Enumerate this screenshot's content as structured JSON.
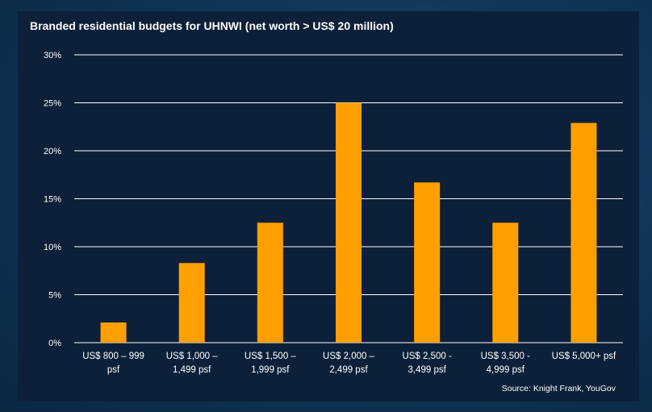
{
  "chart_data": {
    "type": "bar",
    "title": "Branded residential budgets for UHNWI (net worth > US$ 20 million)",
    "source": "Source: Knight Frank, YouGov",
    "categories": [
      [
        "US$ 800   – 999",
        "psf"
      ],
      [
        "US$ 1,000   –",
        "1,499 psf"
      ],
      [
        "US$ 1,500   –",
        "1,999 psf"
      ],
      [
        "US$ 2,000   –",
        "2,499 psf"
      ],
      [
        "US$ 2,500 -",
        "3,499 psf"
      ],
      [
        "US$ 3,500 -",
        "4,999 psf"
      ],
      [
        "US$ 5,000+ psf"
      ]
    ],
    "values": [
      2.1,
      8.3,
      12.5,
      25.0,
      16.7,
      12.5,
      22.9
    ],
    "ylim": [
      0,
      30
    ],
    "yticks": [
      "0%",
      "5%",
      "10%",
      "15%",
      "20%",
      "25%",
      "30%"
    ],
    "ytick_values": [
      0,
      5,
      10,
      15,
      20,
      25,
      30
    ],
    "grid": true,
    "colors": {
      "bar": "#ff9f00",
      "grid": "#ffffff",
      "panel": "#0c2039",
      "background": "#0f3557",
      "text": "#ffffff"
    }
  }
}
